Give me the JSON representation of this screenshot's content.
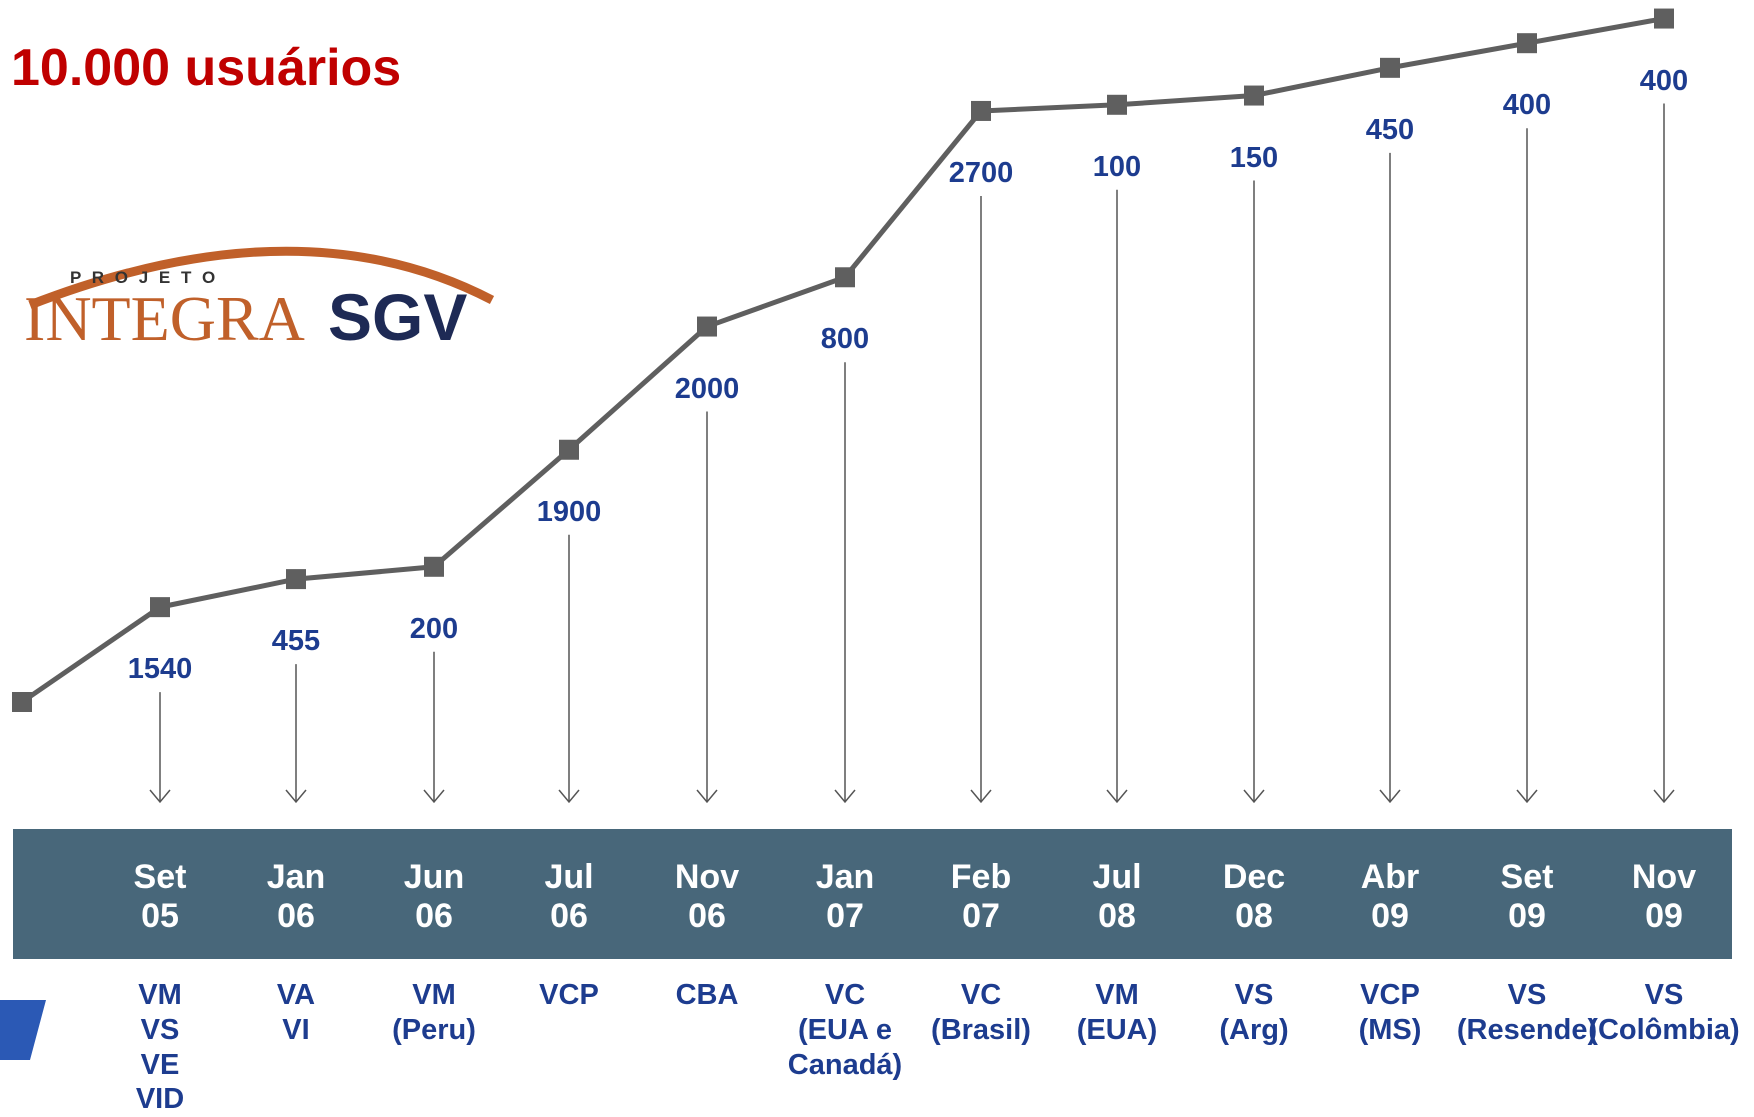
{
  "chart_data": {
    "type": "line",
    "title": "10.000 usuários",
    "logo": {
      "top": "P R O J E T O",
      "left": "INTEGRA",
      "right": "SGV"
    },
    "categories": [
      "Set\n05",
      "Jan\n06",
      "Jun\n06",
      "Jul\n06",
      "Nov\n06",
      "Jan\n07",
      "Feb\n07",
      "Jul\n08",
      "Dec\n08",
      "Abr\n09",
      "Set\n09",
      "Nov\n09"
    ],
    "values": [
      1540,
      455,
      200,
      1900,
      2000,
      800,
      2700,
      100,
      150,
      450,
      400,
      400
    ],
    "sites": [
      "VM\nVS\nVE\nVID",
      "VA\nVI",
      "VM\n(Peru)",
      "VCP",
      "CBA",
      "VC\n(EUA e\nCanadá)",
      "VC\n(Brasil)",
      "VM\n(EUA)",
      "VS\n(Arg)",
      "VCP\n(MS)",
      "VS\n(Resende)",
      "VS\n(Colômbia)"
    ],
    "color": "#5f5f5f",
    "band_color": "#48677a"
  }
}
